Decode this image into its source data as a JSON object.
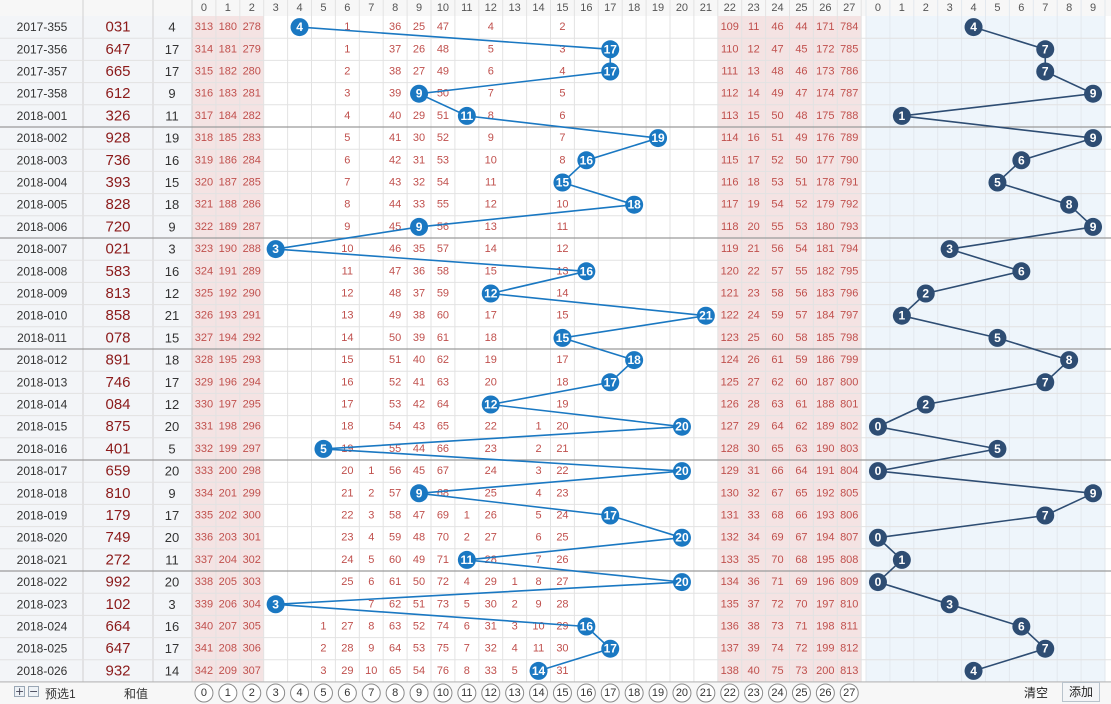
{
  "header": {
    "digits": [
      "0",
      "1",
      "2",
      "3",
      "4",
      "5",
      "6",
      "7",
      "8",
      "9",
      "10",
      "11",
      "12",
      "13",
      "14",
      "15",
      "16",
      "17",
      "18",
      "19",
      "20",
      "21",
      "22",
      "23",
      "24",
      "25",
      "26",
      "27"
    ],
    "tail_digits": [
      "0",
      "1",
      "2",
      "3",
      "4",
      "5",
      "6",
      "7",
      "8",
      "9"
    ]
  },
  "footer": {
    "plus_icon": "plus-icon",
    "minus_icon": "minus-icon",
    "preselect_label": "预选1",
    "sum_label": "和值",
    "clear_label": "清空",
    "add_label": "添加"
  },
  "colors": {
    "ball": "#1a78c2",
    "tail_ball": "#2e4d73",
    "line_left": "#1a78c2",
    "line_right": "#2e4d73",
    "miss_text": "#c0504d"
  },
  "chart_data": {
    "type": "table",
    "rows": [
      {
        "issue": "2017-355",
        "number": "031",
        "sum": 4,
        "pre": [
          "313",
          "180",
          "278"
        ],
        "m1": [
          "",
          "",
          "",
          "1",
          "",
          "36",
          "25",
          "47",
          "",
          "4",
          "",
          "",
          "2"
        ],
        "m2": [
          "109",
          "11",
          "46",
          "44",
          "171",
          "784"
        ],
        "tail": 4
      },
      {
        "issue": "2017-356",
        "number": "647",
        "sum": 17,
        "pre": [
          "314",
          "181",
          "279"
        ],
        "m1": [
          "",
          "",
          "",
          "1",
          "",
          "37",
          "26",
          "48",
          "",
          "5",
          "",
          "",
          "3"
        ],
        "m2": [
          "110",
          "12",
          "47",
          "45",
          "172",
          "785"
        ],
        "tail": 7
      },
      {
        "issue": "2017-357",
        "number": "665",
        "sum": 17,
        "pre": [
          "315",
          "182",
          "280"
        ],
        "m1": [
          "",
          "",
          "",
          "2",
          "",
          "38",
          "27",
          "49",
          "",
          "6",
          "",
          "",
          "4"
        ],
        "m2": [
          "111",
          "13",
          "48",
          "46",
          "173",
          "786"
        ],
        "tail": 7
      },
      {
        "issue": "2017-358",
        "number": "612",
        "sum": 9,
        "pre": [
          "316",
          "183",
          "281"
        ],
        "m1": [
          "",
          "",
          "",
          "3",
          "",
          "39",
          "28",
          "50",
          "",
          "7",
          "",
          "",
          "5"
        ],
        "m2": [
          "112",
          "14",
          "49",
          "47",
          "174",
          "787"
        ],
        "tail": 9
      },
      {
        "issue": "2018-001",
        "number": "326",
        "sum": 11,
        "pre": [
          "317",
          "184",
          "282"
        ],
        "m1": [
          "",
          "",
          "",
          "4",
          "",
          "40",
          "29",
          "51",
          "",
          "8",
          "",
          "",
          "6"
        ],
        "m2": [
          "113",
          "15",
          "50",
          "48",
          "175",
          "788"
        ],
        "tail": 1
      },
      {
        "issue": "2018-002",
        "number": "928",
        "sum": 19,
        "pre": [
          "318",
          "185",
          "283"
        ],
        "m1": [
          "",
          "",
          "",
          "5",
          "",
          "41",
          "30",
          "52",
          "",
          "9",
          "",
          "",
          "7"
        ],
        "m2": [
          "114",
          "16",
          "51",
          "49",
          "176",
          "789"
        ],
        "tail": 9
      },
      {
        "issue": "2018-003",
        "number": "736",
        "sum": 16,
        "pre": [
          "319",
          "186",
          "284"
        ],
        "m1": [
          "",
          "",
          "",
          "6",
          "",
          "42",
          "31",
          "53",
          "",
          "10",
          "",
          "",
          "8"
        ],
        "m2": [
          "115",
          "17",
          "52",
          "50",
          "177",
          "790"
        ],
        "tail": 6
      },
      {
        "issue": "2018-004",
        "number": "393",
        "sum": 15,
        "pre": [
          "320",
          "187",
          "285"
        ],
        "m1": [
          "",
          "",
          "",
          "7",
          "",
          "43",
          "32",
          "54",
          "",
          "11",
          "",
          "",
          "9"
        ],
        "m2": [
          "116",
          "18",
          "53",
          "51",
          "178",
          "791"
        ],
        "tail": 5
      },
      {
        "issue": "2018-005",
        "number": "828",
        "sum": 18,
        "pre": [
          "321",
          "188",
          "286"
        ],
        "m1": [
          "",
          "",
          "",
          "8",
          "",
          "44",
          "33",
          "55",
          "",
          "12",
          "",
          "",
          "10"
        ],
        "m2": [
          "117",
          "19",
          "54",
          "52",
          "179",
          "792"
        ],
        "tail": 8
      },
      {
        "issue": "2018-006",
        "number": "720",
        "sum": 9,
        "pre": [
          "322",
          "189",
          "287"
        ],
        "m1": [
          "",
          "",
          "",
          "9",
          "",
          "45",
          "34",
          "56",
          "",
          "13",
          "",
          "",
          "11"
        ],
        "m2": [
          "118",
          "20",
          "55",
          "53",
          "180",
          "793"
        ],
        "tail": 9
      },
      {
        "issue": "2018-007",
        "number": "021",
        "sum": 3,
        "pre": [
          "323",
          "190",
          "288"
        ],
        "m1": [
          "",
          "",
          "",
          "10",
          "",
          "46",
          "35",
          "57",
          "",
          "14",
          "",
          "",
          "12"
        ],
        "m2": [
          "119",
          "21",
          "56",
          "54",
          "181",
          "794"
        ],
        "tail": 3
      },
      {
        "issue": "2018-008",
        "number": "583",
        "sum": 16,
        "pre": [
          "324",
          "191",
          "289"
        ],
        "m1": [
          "",
          "",
          "",
          "11",
          "",
          "47",
          "36",
          "58",
          "",
          "15",
          "",
          "",
          "13"
        ],
        "m2": [
          "120",
          "22",
          "57",
          "55",
          "182",
          "795"
        ],
        "tail": 6
      },
      {
        "issue": "2018-009",
        "number": "813",
        "sum": 12,
        "pre": [
          "325",
          "192",
          "290"
        ],
        "m1": [
          "",
          "",
          "",
          "12",
          "",
          "48",
          "37",
          "59",
          "",
          "16",
          "",
          "",
          "14"
        ],
        "m2": [
          "121",
          "23",
          "58",
          "56",
          "183",
          "796"
        ],
        "tail": 2
      },
      {
        "issue": "2018-010",
        "number": "858",
        "sum": 21,
        "pre": [
          "326",
          "193",
          "291"
        ],
        "m1": [
          "",
          "",
          "",
          "13",
          "",
          "49",
          "38",
          "60",
          "",
          "17",
          "",
          "",
          "15"
        ],
        "m2": [
          "122",
          "24",
          "59",
          "57",
          "184",
          "797"
        ],
        "tail": 1
      },
      {
        "issue": "2018-011",
        "number": "078",
        "sum": 15,
        "pre": [
          "327",
          "194",
          "292"
        ],
        "m1": [
          "",
          "",
          "",
          "14",
          "",
          "50",
          "39",
          "61",
          "",
          "18",
          "",
          "",
          "16"
        ],
        "m2": [
          "123",
          "25",
          "60",
          "58",
          "185",
          "798"
        ],
        "tail": 5
      },
      {
        "issue": "2018-012",
        "number": "891",
        "sum": 18,
        "pre": [
          "328",
          "195",
          "293"
        ],
        "m1": [
          "",
          "",
          "",
          "15",
          "",
          "51",
          "40",
          "62",
          "",
          "19",
          "",
          "",
          "17"
        ],
        "m2": [
          "124",
          "26",
          "61",
          "59",
          "186",
          "799"
        ],
        "tail": 8
      },
      {
        "issue": "2018-013",
        "number": "746",
        "sum": 17,
        "pre": [
          "329",
          "196",
          "294"
        ],
        "m1": [
          "",
          "",
          "",
          "16",
          "",
          "52",
          "41",
          "63",
          "",
          "20",
          "",
          "",
          "18"
        ],
        "m2": [
          "125",
          "27",
          "62",
          "60",
          "187",
          "800"
        ],
        "tail": 7
      },
      {
        "issue": "2018-014",
        "number": "084",
        "sum": 12,
        "pre": [
          "330",
          "197",
          "295"
        ],
        "m1": [
          "",
          "",
          "",
          "17",
          "",
          "53",
          "42",
          "64",
          "",
          "21",
          "",
          "",
          "19"
        ],
        "m2": [
          "126",
          "28",
          "63",
          "61",
          "188",
          "801"
        ],
        "tail": 2
      },
      {
        "issue": "2018-015",
        "number": "875",
        "sum": 20,
        "pre": [
          "331",
          "198",
          "296"
        ],
        "m1": [
          "",
          "",
          "",
          "18",
          "",
          "54",
          "43",
          "65",
          "",
          "22",
          "",
          "1",
          "20"
        ],
        "m2": [
          "127",
          "29",
          "64",
          "62",
          "189",
          "802"
        ],
        "tail": 0
      },
      {
        "issue": "2018-016",
        "number": "401",
        "sum": 5,
        "pre": [
          "332",
          "199",
          "297"
        ],
        "m1": [
          "",
          "",
          "",
          "19",
          "",
          "55",
          "44",
          "66",
          "",
          "23",
          "",
          "2",
          "21"
        ],
        "m2": [
          "128",
          "30",
          "65",
          "63",
          "190",
          "803"
        ],
        "tail": 5
      },
      {
        "issue": "2018-017",
        "number": "659",
        "sum": 20,
        "pre": [
          "333",
          "200",
          "298"
        ],
        "m1": [
          "",
          "",
          "",
          "20",
          "1",
          "56",
          "45",
          "67",
          "",
          "24",
          "",
          "3",
          "22"
        ],
        "m2": [
          "129",
          "31",
          "66",
          "64",
          "191",
          "804"
        ],
        "tail": 0
      },
      {
        "issue": "2018-018",
        "number": "810",
        "sum": 9,
        "pre": [
          "334",
          "201",
          "299"
        ],
        "m1": [
          "",
          "",
          "",
          "21",
          "2",
          "57",
          "46",
          "68",
          "",
          "25",
          "",
          "4",
          "23"
        ],
        "m2": [
          "130",
          "32",
          "67",
          "65",
          "192",
          "805"
        ],
        "tail": 9
      },
      {
        "issue": "2018-019",
        "number": "179",
        "sum": 17,
        "pre": [
          "335",
          "202",
          "300"
        ],
        "m1": [
          "",
          "",
          "",
          "22",
          "3",
          "58",
          "47",
          "69",
          "1",
          "26",
          "",
          "5",
          "24"
        ],
        "m2": [
          "131",
          "33",
          "68",
          "66",
          "193",
          "806"
        ],
        "tail": 7
      },
      {
        "issue": "2018-020",
        "number": "749",
        "sum": 20,
        "pre": [
          "336",
          "203",
          "301"
        ],
        "m1": [
          "",
          "",
          "",
          "23",
          "4",
          "59",
          "48",
          "70",
          "2",
          "27",
          "",
          "6",
          "25"
        ],
        "m2": [
          "132",
          "34",
          "69",
          "67",
          "194",
          "807"
        ],
        "tail": 0
      },
      {
        "issue": "2018-021",
        "number": "272",
        "sum": 11,
        "pre": [
          "337",
          "204",
          "302"
        ],
        "m1": [
          "",
          "",
          "",
          "24",
          "5",
          "60",
          "49",
          "71",
          "3",
          "28",
          "",
          "7",
          "26"
        ],
        "m2": [
          "133",
          "35",
          "70",
          "68",
          "195",
          "808"
        ],
        "tail": 1
      },
      {
        "issue": "2018-022",
        "number": "992",
        "sum": 20,
        "pre": [
          "338",
          "205",
          "303"
        ],
        "m1": [
          "",
          "",
          "",
          "25",
          "6",
          "61",
          "50",
          "72",
          "4",
          "29",
          "1",
          "8",
          "27"
        ],
        "m2": [
          "134",
          "36",
          "71",
          "69",
          "196",
          "809"
        ],
        "tail": 0
      },
      {
        "issue": "2018-023",
        "number": "102",
        "sum": 3,
        "pre": [
          "339",
          "206",
          "304"
        ],
        "m1": [
          "",
          "",
          "",
          "",
          "7",
          "62",
          "51",
          "73",
          "5",
          "30",
          "2",
          "9",
          "28"
        ],
        "m2": [
          "135",
          "37",
          "72",
          "70",
          "197",
          "810"
        ],
        "tail": 3
      },
      {
        "issue": "2018-024",
        "number": "664",
        "sum": 16,
        "pre": [
          "340",
          "207",
          "305"
        ],
        "m1": [
          "",
          "",
          "1",
          "27",
          "8",
          "63",
          "52",
          "74",
          "6",
          "31",
          "3",
          "10",
          "29"
        ],
        "m2": [
          "136",
          "38",
          "73",
          "71",
          "198",
          "811"
        ],
        "tail": 6
      },
      {
        "issue": "2018-025",
        "number": "647",
        "sum": 17,
        "pre": [
          "341",
          "208",
          "306"
        ],
        "m1": [
          "",
          "",
          "2",
          "28",
          "9",
          "64",
          "53",
          "75",
          "7",
          "32",
          "4",
          "11",
          "30"
        ],
        "m2": [
          "137",
          "39",
          "74",
          "72",
          "199",
          "812"
        ],
        "tail": 7
      },
      {
        "issue": "2018-026",
        "number": "932",
        "sum": 14,
        "pre": [
          "342",
          "209",
          "307"
        ],
        "m1": [
          "",
          "",
          "3",
          "29",
          "10",
          "65",
          "54",
          "76",
          "8",
          "33",
          "5",
          "12",
          "31"
        ],
        "m2": [
          "138",
          "40",
          "75",
          "73",
          "200",
          "813"
        ],
        "tail": 4
      }
    ]
  }
}
